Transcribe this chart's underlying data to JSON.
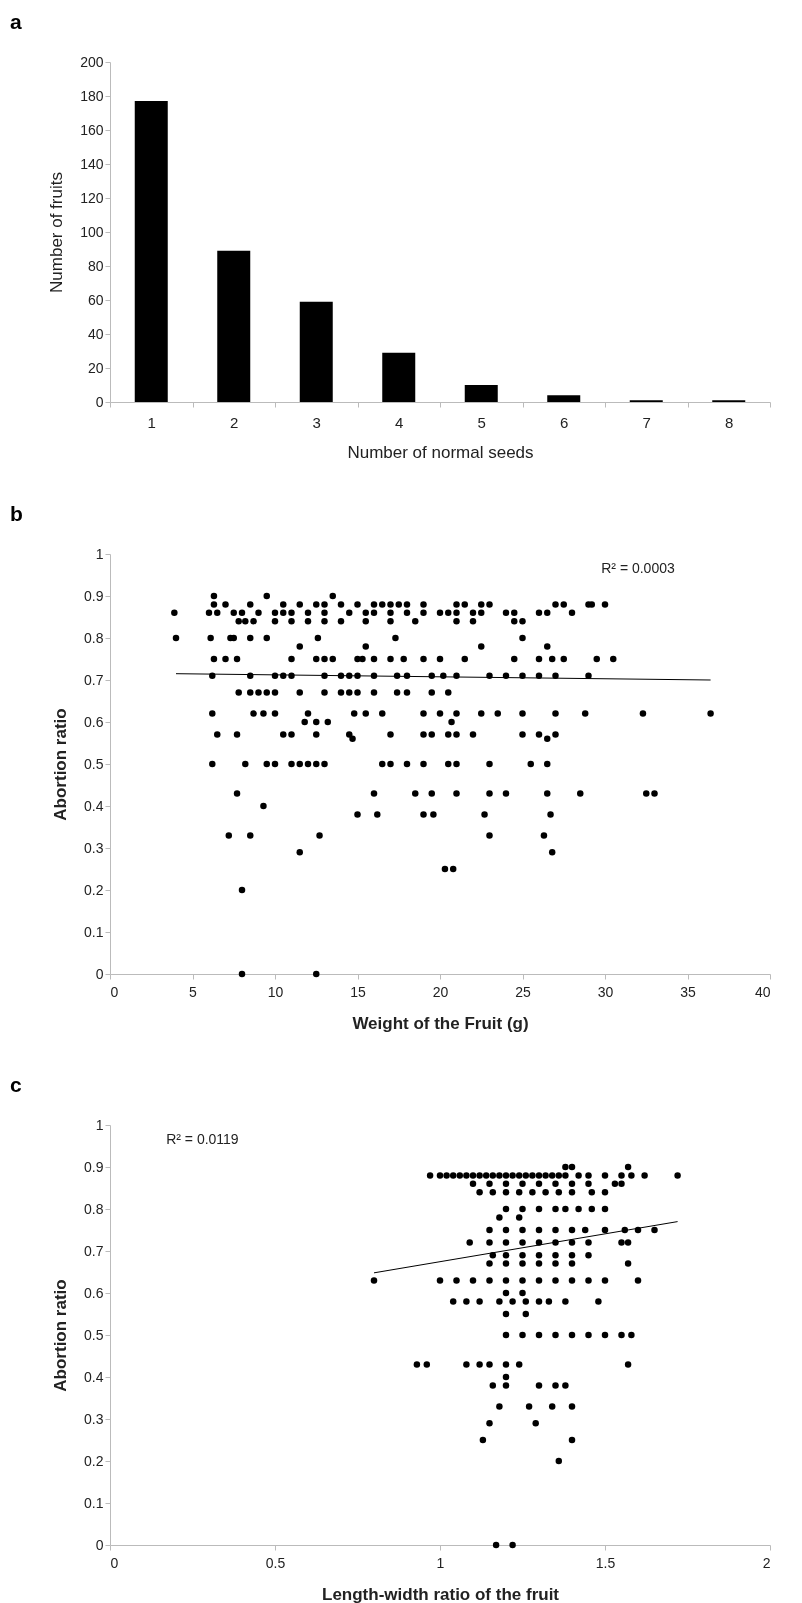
{
  "chart_data": [
    {
      "type": "bar",
      "title": "a",
      "xlabel": "Number of normal seeds",
      "ylabel": "Number of fruits",
      "categories": [
        "1",
        "2",
        "3",
        "4",
        "5",
        "6",
        "7",
        "8"
      ],
      "values": [
        177,
        89,
        59,
        29,
        10,
        4,
        1,
        1
      ],
      "color": "#000000",
      "ylim": [
        0,
        200
      ],
      "yticks": [
        0,
        20,
        40,
        60,
        80,
        100,
        120,
        140,
        160,
        180,
        200
      ]
    },
    {
      "type": "scatter",
      "title": "b",
      "xlabel": "Weight of the Fruit (g)",
      "ylabel": "Abortion ratio",
      "xlim": [
        0,
        40
      ],
      "xticks": [
        0,
        5,
        10,
        15,
        20,
        25,
        30,
        35,
        40
      ],
      "ylim": [
        0,
        1
      ],
      "yticks": [
        0,
        0.1,
        0.2,
        0.3,
        0.4,
        0.5,
        0.6,
        0.7,
        0.8,
        0.9,
        1
      ],
      "annotations": [
        "R² = 0.0003"
      ],
      "series": [
        {
          "type": "scatter",
          "marker": "circle",
          "color": "#000000",
          "x": [
            6.3,
            9.5,
            13.5,
            6.3,
            7,
            8.5,
            10.5,
            11.5,
            12.5,
            13,
            14,
            15,
            16,
            16.5,
            17,
            17.5,
            18,
            19,
            21,
            21.5,
            22.5,
            23,
            27,
            27.5,
            29,
            29.2,
            30,
            3.9,
            6,
            6.5,
            7.5,
            8,
            9,
            10,
            10.5,
            11,
            12,
            13,
            14.5,
            15.5,
            16,
            17,
            18,
            19,
            20,
            20.5,
            21,
            22,
            22.5,
            24,
            24.5,
            26,
            26.5,
            28,
            7.8,
            8.2,
            8.7,
            10,
            11,
            12,
            13,
            14,
            15.5,
            17,
            18.5,
            21,
            22,
            24.5,
            25,
            4,
            6.1,
            7.3,
            7.5,
            8.5,
            9.5,
            12.6,
            17.3,
            25,
            11.5,
            15.5,
            22.5,
            26.5,
            6.3,
            7,
            7.7,
            11,
            12.5,
            13,
            13.5,
            15,
            15.3,
            16,
            17,
            17.8,
            19,
            20,
            21.5,
            24.5,
            26,
            26.8,
            27.5,
            29.5,
            30.5,
            6.2,
            8.5,
            10,
            10.5,
            11,
            13,
            14,
            14.5,
            15,
            16,
            17.4,
            18,
            19.5,
            20.2,
            21,
            23,
            24,
            25,
            26,
            27,
            29,
            7.8,
            8.5,
            9,
            9.5,
            10,
            11.5,
            13,
            14,
            14.5,
            15,
            16,
            17.4,
            18,
            19.5,
            20.5,
            6.2,
            8.7,
            9.3,
            10,
            12,
            14.8,
            15.5,
            16.5,
            19,
            20,
            21,
            22.5,
            23.5,
            25,
            27,
            28.8,
            32.3,
            36.4,
            11.8,
            12.5,
            13.2,
            20.7,
            6.5,
            7.7,
            10.5,
            11,
            12.5,
            14.5,
            17,
            19,
            19.5,
            20.5,
            21,
            22,
            25,
            26,
            27,
            14.7,
            26.5,
            6.2,
            8.2,
            9.5,
            10,
            11,
            11.5,
            12,
            12.5,
            13,
            16.5,
            17,
            18,
            19,
            20.5,
            21,
            23,
            25.5,
            26.5,
            7.7,
            16,
            18.5,
            19.5,
            21,
            23,
            24,
            26.5,
            28.5,
            32.5,
            33,
            9.3,
            15,
            16.2,
            19,
            19.6,
            22.7,
            26.7,
            7.2,
            8.5,
            12.7,
            23,
            26.3,
            11.5,
            26.8,
            20.3,
            20.8,
            8,
            8,
            12.5
          ],
          "values": [
            0.9,
            0.9,
            0.9,
            0.88,
            0.88,
            0.88,
            0.88,
            0.88,
            0.88,
            0.88,
            0.88,
            0.88,
            0.88,
            0.88,
            0.88,
            0.88,
            0.88,
            0.88,
            0.88,
            0.88,
            0.88,
            0.88,
            0.88,
            0.88,
            0.88,
            0.88,
            0.88,
            0.86,
            0.86,
            0.86,
            0.86,
            0.86,
            0.86,
            0.86,
            0.86,
            0.86,
            0.86,
            0.86,
            0.86,
            0.86,
            0.86,
            0.86,
            0.86,
            0.86,
            0.86,
            0.86,
            0.86,
            0.86,
            0.86,
            0.86,
            0.86,
            0.86,
            0.86,
            0.86,
            0.84,
            0.84,
            0.84,
            0.84,
            0.84,
            0.84,
            0.84,
            0.84,
            0.84,
            0.84,
            0.84,
            0.84,
            0.84,
            0.84,
            0.84,
            0.8,
            0.8,
            0.8,
            0.8,
            0.8,
            0.8,
            0.8,
            0.8,
            0.8,
            0.78,
            0.78,
            0.78,
            0.78,
            0.75,
            0.75,
            0.75,
            0.75,
            0.75,
            0.75,
            0.75,
            0.75,
            0.75,
            0.75,
            0.75,
            0.75,
            0.75,
            0.75,
            0.75,
            0.75,
            0.75,
            0.75,
            0.75,
            0.75,
            0.75,
            0.71,
            0.71,
            0.71,
            0.71,
            0.71,
            0.71,
            0.71,
            0.71,
            0.71,
            0.71,
            0.71,
            0.71,
            0.71,
            0.71,
            0.71,
            0.71,
            0.71,
            0.71,
            0.71,
            0.71,
            0.71,
            0.67,
            0.67,
            0.67,
            0.67,
            0.67,
            0.67,
            0.67,
            0.67,
            0.67,
            0.67,
            0.67,
            0.67,
            0.67,
            0.67,
            0.67,
            0.62,
            0.62,
            0.62,
            0.62,
            0.62,
            0.62,
            0.62,
            0.62,
            0.62,
            0.62,
            0.62,
            0.62,
            0.62,
            0.62,
            0.62,
            0.62,
            0.62,
            0.62,
            0.6,
            0.6,
            0.6,
            0.6,
            0.57,
            0.57,
            0.57,
            0.57,
            0.57,
            0.57,
            0.57,
            0.57,
            0.57,
            0.57,
            0.57,
            0.57,
            0.57,
            0.57,
            0.57,
            0.56,
            0.56,
            0.5,
            0.5,
            0.5,
            0.5,
            0.5,
            0.5,
            0.5,
            0.5,
            0.5,
            0.5,
            0.5,
            0.5,
            0.5,
            0.5,
            0.5,
            0.5,
            0.5,
            0.5,
            0.43,
            0.43,
            0.43,
            0.43,
            0.43,
            0.43,
            0.43,
            0.43,
            0.43,
            0.43,
            0.43,
            0.4,
            0.38,
            0.38,
            0.38,
            0.38,
            0.38,
            0.38,
            0.33,
            0.33,
            0.33,
            0.33,
            0.33,
            0.29,
            0.29,
            0.25,
            0.25,
            0.2,
            0,
            0
          ]
        },
        {
          "type": "line",
          "marker": "none",
          "color": "#000000",
          "x": [
            4,
            36.4
          ],
          "values": [
            0.715,
            0.7
          ]
        }
      ]
    },
    {
      "type": "scatter",
      "title": "c",
      "xlabel": "Length-width ratio of the fruit",
      "ylabel": "Abortion ratio",
      "xlim": [
        0,
        2
      ],
      "xticks": [
        0,
        0.5,
        1,
        1.5,
        2
      ],
      "ylim": [
        0,
        1
      ],
      "yticks": [
        0,
        0.1,
        0.2,
        0.3,
        0.4,
        0.5,
        0.6,
        0.7,
        0.8,
        0.9,
        1
      ],
      "annotations": [
        "R² = 0.0119"
      ],
      "series": [
        {
          "type": "scatter",
          "marker": "circle",
          "color": "#000000",
          "x": [
            1.38,
            1.4,
            1.57,
            0.97,
            1.0,
            1.02,
            1.04,
            1.06,
            1.08,
            1.1,
            1.12,
            1.14,
            1.16,
            1.18,
            1.2,
            1.22,
            1.24,
            1.26,
            1.28,
            1.3,
            1.32,
            1.34,
            1.36,
            1.38,
            1.42,
            1.45,
            1.5,
            1.55,
            1.58,
            1.62,
            1.72,
            1.1,
            1.15,
            1.2,
            1.25,
            1.3,
            1.35,
            1.4,
            1.45,
            1.53,
            1.55,
            1.12,
            1.16,
            1.2,
            1.24,
            1.28,
            1.32,
            1.36,
            1.4,
            1.46,
            1.5,
            1.2,
            1.25,
            1.3,
            1.35,
            1.38,
            1.42,
            1.46,
            1.5,
            1.18,
            1.24,
            1.15,
            1.2,
            1.25,
            1.3,
            1.35,
            1.4,
            1.44,
            1.5,
            1.56,
            1.6,
            1.65,
            1.09,
            1.15,
            1.2,
            1.25,
            1.3,
            1.35,
            1.4,
            1.45,
            1.55,
            1.57,
            1.16,
            1.2,
            1.25,
            1.3,
            1.35,
            1.4,
            1.45,
            1.15,
            1.2,
            1.25,
            1.3,
            1.35,
            1.4,
            1.57,
            0.8,
            1.0,
            1.05,
            1.1,
            1.15,
            1.2,
            1.25,
            1.3,
            1.35,
            1.4,
            1.45,
            1.5,
            1.6,
            1.2,
            1.25,
            1.04,
            1.08,
            1.12,
            1.18,
            1.22,
            1.26,
            1.3,
            1.33,
            1.38,
            1.48,
            1.2,
            1.26,
            1.2,
            1.25,
            1.3,
            1.35,
            1.4,
            1.45,
            1.5,
            1.55,
            1.58,
            0.93,
            0.96,
            1.08,
            1.12,
            1.15,
            1.2,
            1.24,
            1.57,
            1.2,
            1.16,
            1.2,
            1.3,
            1.35,
            1.38,
            1.18,
            1.27,
            1.34,
            1.4,
            1.15,
            1.29,
            1.13,
            1.4,
            1.36,
            1.17,
            1.22
          ],
          "values": [
            0.9,
            0.9,
            0.9,
            0.88,
            0.88,
            0.88,
            0.88,
            0.88,
            0.88,
            0.88,
            0.88,
            0.88,
            0.88,
            0.88,
            0.88,
            0.88,
            0.88,
            0.88,
            0.88,
            0.88,
            0.88,
            0.88,
            0.88,
            0.88,
            0.88,
            0.88,
            0.88,
            0.88,
            0.88,
            0.88,
            0.88,
            0.86,
            0.86,
            0.86,
            0.86,
            0.86,
            0.86,
            0.86,
            0.86,
            0.86,
            0.86,
            0.84,
            0.84,
            0.84,
            0.84,
            0.84,
            0.84,
            0.84,
            0.84,
            0.84,
            0.84,
            0.8,
            0.8,
            0.8,
            0.8,
            0.8,
            0.8,
            0.8,
            0.8,
            0.78,
            0.78,
            0.75,
            0.75,
            0.75,
            0.75,
            0.75,
            0.75,
            0.75,
            0.75,
            0.75,
            0.75,
            0.75,
            0.72,
            0.72,
            0.72,
            0.72,
            0.72,
            0.72,
            0.72,
            0.72,
            0.72,
            0.72,
            0.69,
            0.69,
            0.69,
            0.69,
            0.69,
            0.69,
            0.69,
            0.67,
            0.67,
            0.67,
            0.67,
            0.67,
            0.67,
            0.67,
            0.63,
            0.63,
            0.63,
            0.63,
            0.63,
            0.63,
            0.63,
            0.63,
            0.63,
            0.63,
            0.63,
            0.63,
            0.63,
            0.6,
            0.6,
            0.58,
            0.58,
            0.58,
            0.58,
            0.58,
            0.58,
            0.58,
            0.58,
            0.58,
            0.58,
            0.55,
            0.55,
            0.5,
            0.5,
            0.5,
            0.5,
            0.5,
            0.5,
            0.5,
            0.5,
            0.5,
            0.43,
            0.43,
            0.43,
            0.43,
            0.43,
            0.43,
            0.43,
            0.43,
            0.4,
            0.38,
            0.38,
            0.38,
            0.38,
            0.38,
            0.33,
            0.33,
            0.33,
            0.33,
            0.29,
            0.29,
            0.25,
            0.25,
            0.2,
            0,
            0
          ]
        },
        {
          "type": "line",
          "marker": "none",
          "color": "#000000",
          "x": [
            0.8,
            1.72
          ],
          "values": [
            0.648,
            0.77
          ]
        }
      ]
    }
  ]
}
